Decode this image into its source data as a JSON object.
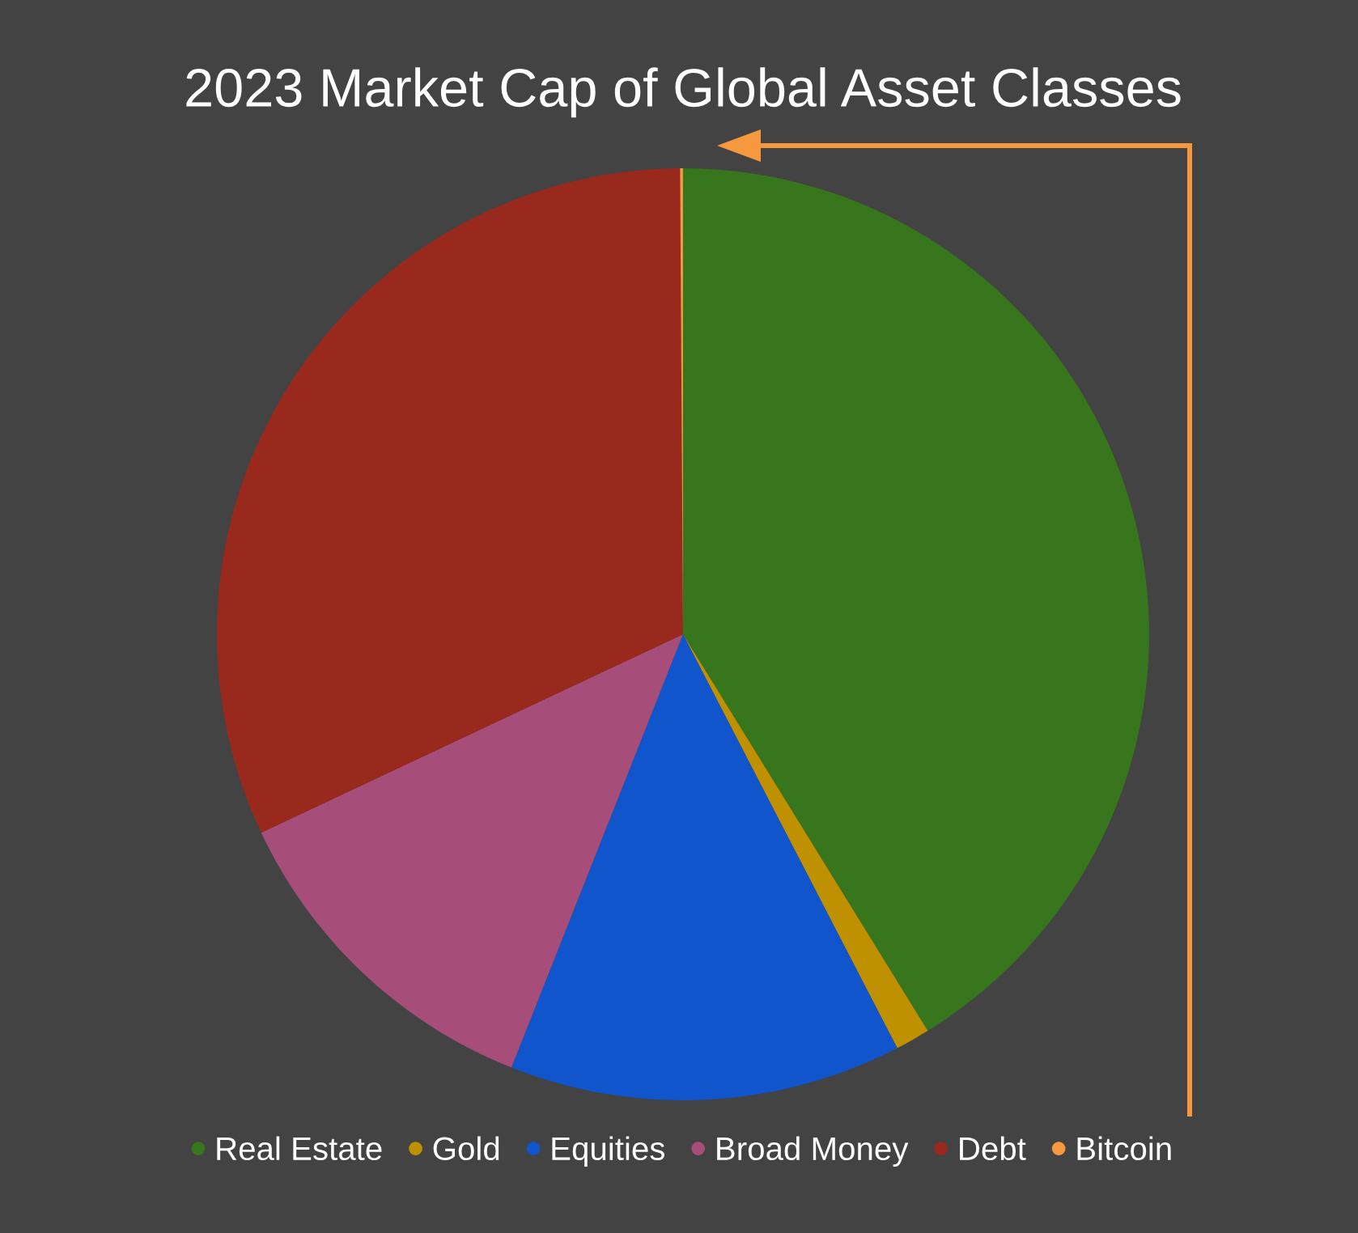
{
  "chart_data": {
    "type": "pie",
    "title": "2023 Market Cap of Global Asset Classes",
    "categories": [
      "Real Estate",
      "Gold",
      "Equities",
      "Broad Money",
      "Debt",
      "Bitcoin"
    ],
    "values": [
      41.2,
      1.2,
      13.6,
      12.0,
      31.9,
      0.1
    ],
    "colors": [
      "#38761d",
      "#bf9000",
      "#1155cc",
      "#a64d79",
      "#99291d",
      "#f6993e"
    ],
    "legend": "bottom"
  }
}
